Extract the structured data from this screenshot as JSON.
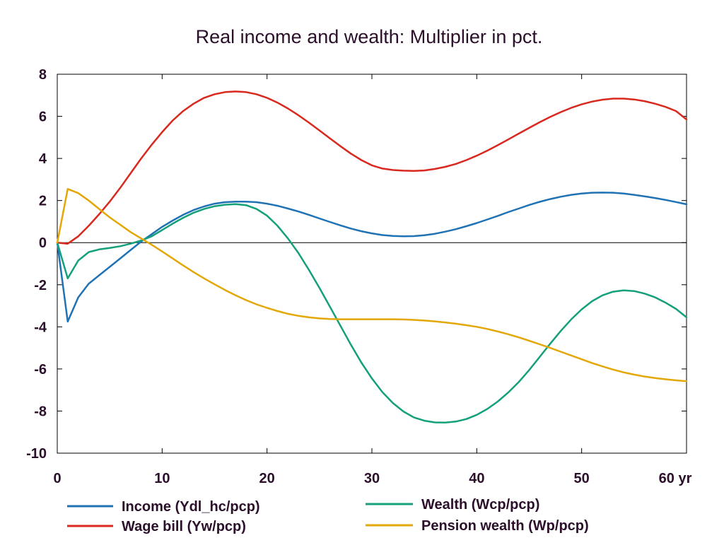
{
  "chart_data": {
    "type": "line",
    "title": "Real income and wealth: Multiplier in pct.",
    "x_unit_label": "yr",
    "xlim": [
      0,
      60
    ],
    "ylim": [
      -10,
      8
    ],
    "x_ticks": [
      0,
      10,
      20,
      30,
      40,
      50,
      60
    ],
    "y_ticks": [
      8,
      6,
      4,
      2,
      0,
      -2,
      -4,
      -6,
      -8,
      -10
    ],
    "x_tick_labels": [
      "0",
      "10",
      "20",
      "30",
      "40",
      "50",
      "60 yr"
    ],
    "y_tick_labels": [
      "8",
      "6",
      "4",
      "2",
      "0",
      "-2",
      "-4",
      "-6",
      "-8",
      "-10"
    ],
    "grid": false,
    "zero_line": true,
    "legend_position": "bottom",
    "series": [
      {
        "name": "Income (Ydl_hc/pcp)",
        "color": "#1f72b4",
        "points": [
          [
            0,
            0
          ],
          [
            1,
            -3.75
          ],
          [
            2,
            -2.6
          ],
          [
            3,
            -1.95
          ],
          [
            4,
            -1.55
          ],
          [
            5,
            -1.15
          ],
          [
            6,
            -0.75
          ],
          [
            7,
            -0.35
          ],
          [
            8,
            0.05
          ],
          [
            9,
            0.4
          ],
          [
            10,
            0.75
          ],
          [
            11,
            1.05
          ],
          [
            12,
            1.32
          ],
          [
            13,
            1.55
          ],
          [
            14,
            1.72
          ],
          [
            15,
            1.85
          ],
          [
            16,
            1.92
          ],
          [
            17,
            1.95
          ],
          [
            18,
            1.95
          ],
          [
            19,
            1.92
          ],
          [
            20,
            1.85
          ],
          [
            21,
            1.75
          ],
          [
            22,
            1.62
          ],
          [
            23,
            1.48
          ],
          [
            24,
            1.32
          ],
          [
            25,
            1.15
          ],
          [
            26,
            0.98
          ],
          [
            27,
            0.82
          ],
          [
            28,
            0.67
          ],
          [
            29,
            0.54
          ],
          [
            30,
            0.44
          ],
          [
            31,
            0.36
          ],
          [
            32,
            0.32
          ],
          [
            33,
            0.3
          ],
          [
            34,
            0.31
          ],
          [
            35,
            0.35
          ],
          [
            36,
            0.42
          ],
          [
            37,
            0.52
          ],
          [
            38,
            0.64
          ],
          [
            39,
            0.78
          ],
          [
            40,
            0.93
          ],
          [
            41,
            1.1
          ],
          [
            42,
            1.27
          ],
          [
            43,
            1.45
          ],
          [
            44,
            1.62
          ],
          [
            45,
            1.79
          ],
          [
            46,
            1.94
          ],
          [
            47,
            2.07
          ],
          [
            48,
            2.18
          ],
          [
            49,
            2.27
          ],
          [
            50,
            2.33
          ],
          [
            51,
            2.37
          ],
          [
            52,
            2.38
          ],
          [
            53,
            2.37
          ],
          [
            54,
            2.33
          ],
          [
            55,
            2.27
          ],
          [
            56,
            2.2
          ],
          [
            57,
            2.12
          ],
          [
            58,
            2.03
          ],
          [
            59,
            1.93
          ],
          [
            60,
            1.82
          ]
        ]
      },
      {
        "name": "Wage bill (Yw/pcp)",
        "color": "#d9281e",
        "points": [
          [
            0,
            0
          ],
          [
            1,
            -0.05
          ],
          [
            2,
            0.3
          ],
          [
            3,
            0.8
          ],
          [
            4,
            1.35
          ],
          [
            5,
            1.95
          ],
          [
            6,
            2.6
          ],
          [
            7,
            3.3
          ],
          [
            8,
            4.0
          ],
          [
            9,
            4.65
          ],
          [
            10,
            5.25
          ],
          [
            11,
            5.8
          ],
          [
            12,
            6.25
          ],
          [
            13,
            6.6
          ],
          [
            14,
            6.88
          ],
          [
            15,
            7.05
          ],
          [
            16,
            7.15
          ],
          [
            17,
            7.18
          ],
          [
            18,
            7.15
          ],
          [
            19,
            7.05
          ],
          [
            20,
            6.88
          ],
          [
            21,
            6.65
          ],
          [
            22,
            6.37
          ],
          [
            23,
            6.05
          ],
          [
            24,
            5.7
          ],
          [
            25,
            5.33
          ],
          [
            26,
            4.95
          ],
          [
            27,
            4.58
          ],
          [
            28,
            4.23
          ],
          [
            29,
            3.92
          ],
          [
            30,
            3.67
          ],
          [
            31,
            3.52
          ],
          [
            32,
            3.45
          ],
          [
            33,
            3.42
          ],
          [
            34,
            3.41
          ],
          [
            35,
            3.43
          ],
          [
            36,
            3.5
          ],
          [
            37,
            3.6
          ],
          [
            38,
            3.74
          ],
          [
            39,
            3.92
          ],
          [
            40,
            4.13
          ],
          [
            41,
            4.37
          ],
          [
            42,
            4.63
          ],
          [
            43,
            4.9
          ],
          [
            44,
            5.18
          ],
          [
            45,
            5.45
          ],
          [
            46,
            5.72
          ],
          [
            47,
            5.97
          ],
          [
            48,
            6.2
          ],
          [
            49,
            6.4
          ],
          [
            50,
            6.57
          ],
          [
            51,
            6.7
          ],
          [
            52,
            6.79
          ],
          [
            53,
            6.84
          ],
          [
            54,
            6.84
          ],
          [
            55,
            6.8
          ],
          [
            56,
            6.72
          ],
          [
            57,
            6.6
          ],
          [
            58,
            6.45
          ],
          [
            59,
            6.25
          ],
          [
            60,
            5.85
          ]
        ]
      },
      {
        "name": "Wealth (Wcp/pcp)",
        "color": "#14a07a",
        "points": [
          [
            0,
            0
          ],
          [
            1,
            -1.7
          ],
          [
            2,
            -0.85
          ],
          [
            3,
            -0.45
          ],
          [
            4,
            -0.32
          ],
          [
            5,
            -0.25
          ],
          [
            6,
            -0.17
          ],
          [
            7,
            -0.05
          ],
          [
            8,
            0.1
          ],
          [
            9,
            0.3
          ],
          [
            10,
            0.6
          ],
          [
            11,
            0.9
          ],
          [
            12,
            1.18
          ],
          [
            13,
            1.42
          ],
          [
            14,
            1.6
          ],
          [
            15,
            1.73
          ],
          [
            16,
            1.8
          ],
          [
            17,
            1.83
          ],
          [
            18,
            1.78
          ],
          [
            19,
            1.6
          ],
          [
            20,
            1.28
          ],
          [
            21,
            0.8
          ],
          [
            22,
            0.2
          ],
          [
            23,
            -0.5
          ],
          [
            24,
            -1.3
          ],
          [
            25,
            -2.15
          ],
          [
            26,
            -3.05
          ],
          [
            27,
            -3.95
          ],
          [
            28,
            -4.85
          ],
          [
            29,
            -5.7
          ],
          [
            30,
            -6.45
          ],
          [
            31,
            -7.1
          ],
          [
            32,
            -7.62
          ],
          [
            33,
            -8.02
          ],
          [
            34,
            -8.3
          ],
          [
            35,
            -8.46
          ],
          [
            36,
            -8.54
          ],
          [
            37,
            -8.55
          ],
          [
            38,
            -8.5
          ],
          [
            39,
            -8.38
          ],
          [
            40,
            -8.18
          ],
          [
            41,
            -7.9
          ],
          [
            42,
            -7.55
          ],
          [
            43,
            -7.12
          ],
          [
            44,
            -6.62
          ],
          [
            45,
            -6.05
          ],
          [
            46,
            -5.43
          ],
          [
            47,
            -4.8
          ],
          [
            48,
            -4.2
          ],
          [
            49,
            -3.65
          ],
          [
            50,
            -3.17
          ],
          [
            51,
            -2.78
          ],
          [
            52,
            -2.5
          ],
          [
            53,
            -2.33
          ],
          [
            54,
            -2.27
          ],
          [
            55,
            -2.3
          ],
          [
            56,
            -2.42
          ],
          [
            57,
            -2.6
          ],
          [
            58,
            -2.85
          ],
          [
            59,
            -3.15
          ],
          [
            60,
            -3.55
          ]
        ]
      },
      {
        "name": "Pension wealth (Wp/pcp)",
        "color": "#e3a707",
        "points": [
          [
            0,
            0
          ],
          [
            1,
            2.55
          ],
          [
            2,
            2.35
          ],
          [
            3,
            2.0
          ],
          [
            4,
            1.6
          ],
          [
            5,
            1.2
          ],
          [
            6,
            0.85
          ],
          [
            7,
            0.5
          ],
          [
            8,
            0.2
          ],
          [
            9,
            -0.1
          ],
          [
            10,
            -0.42
          ],
          [
            11,
            -0.75
          ],
          [
            12,
            -1.08
          ],
          [
            13,
            -1.4
          ],
          [
            14,
            -1.7
          ],
          [
            15,
            -1.98
          ],
          [
            16,
            -2.25
          ],
          [
            17,
            -2.5
          ],
          [
            18,
            -2.73
          ],
          [
            19,
            -2.93
          ],
          [
            20,
            -3.1
          ],
          [
            21,
            -3.25
          ],
          [
            22,
            -3.38
          ],
          [
            23,
            -3.48
          ],
          [
            24,
            -3.55
          ],
          [
            25,
            -3.6
          ],
          [
            26,
            -3.63
          ],
          [
            27,
            -3.64
          ],
          [
            28,
            -3.64
          ],
          [
            29,
            -3.64
          ],
          [
            30,
            -3.64
          ],
          [
            31,
            -3.64
          ],
          [
            32,
            -3.64
          ],
          [
            33,
            -3.65
          ],
          [
            34,
            -3.67
          ],
          [
            35,
            -3.7
          ],
          [
            36,
            -3.74
          ],
          [
            37,
            -3.79
          ],
          [
            38,
            -3.85
          ],
          [
            39,
            -3.92
          ],
          [
            40,
            -4.0
          ],
          [
            41,
            -4.1
          ],
          [
            42,
            -4.22
          ],
          [
            43,
            -4.35
          ],
          [
            44,
            -4.5
          ],
          [
            45,
            -4.66
          ],
          [
            46,
            -4.83
          ],
          [
            47,
            -5.0
          ],
          [
            48,
            -5.18
          ],
          [
            49,
            -5.36
          ],
          [
            50,
            -5.54
          ],
          [
            51,
            -5.72
          ],
          [
            52,
            -5.88
          ],
          [
            53,
            -6.03
          ],
          [
            54,
            -6.16
          ],
          [
            55,
            -6.27
          ],
          [
            56,
            -6.36
          ],
          [
            57,
            -6.43
          ],
          [
            58,
            -6.49
          ],
          [
            59,
            -6.54
          ],
          [
            60,
            -6.58
          ]
        ]
      }
    ]
  }
}
